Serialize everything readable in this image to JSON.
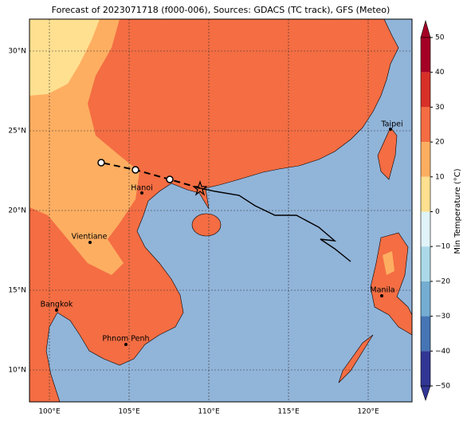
{
  "map": {
    "title": "Forecast of 2023071718 (f000-006), Sources: GDACS (TC track), GFS (Meteo)",
    "lat_labels": [
      "30°N",
      "25°N",
      "20°N",
      "15°N",
      "10°N"
    ],
    "lon_labels": [
      "100°E",
      "105°E",
      "110°E",
      "115°E",
      "120°E"
    ],
    "cities": [
      "Taipei",
      "Hanoi",
      "Vientiane",
      "Manila",
      "Bangkok",
      "Phnom Penh"
    ]
  },
  "colorbar": {
    "label": "Min Temperature (°C)",
    "ticks": [
      50,
      40,
      30,
      20,
      10,
      0,
      {
        "value": -10,
        "label": "−10"
      },
      {
        "value": -20,
        "label": "−20"
      },
      {
        "value": -30,
        "label": "−30"
      },
      {
        "value": -40,
        "label": "−40"
      },
      {
        "value": -50,
        "label": "−50"
      }
    ],
    "colors": [
      "#a50026",
      "#d73027",
      "#f46d43",
      "#fdae61",
      "#fee090",
      "#e0f3f8",
      "#abd9e9",
      "#74add1",
      "#4575b4",
      "#313695"
    ]
  }
}
